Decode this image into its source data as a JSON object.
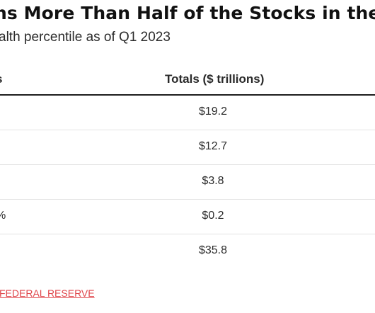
{
  "title": "ns More Than Half of the Stocks in the U.S",
  "subtitle": "alth percentile as of Q1 2023",
  "table": {
    "headers": [
      "s",
      "Totals ($ trillions)"
    ],
    "rows": [
      {
        "label": "",
        "total": "$19.2"
      },
      {
        "label": "",
        "total": "$12.7"
      },
      {
        "label": "",
        "total": "$3.8"
      },
      {
        "label": "%",
        "total": "$0.2"
      },
      {
        "label": "",
        "total": "$35.8"
      }
    ]
  },
  "source": {
    "link_text": "FEDERAL RESERVE",
    "link_color": "#e0474c"
  }
}
